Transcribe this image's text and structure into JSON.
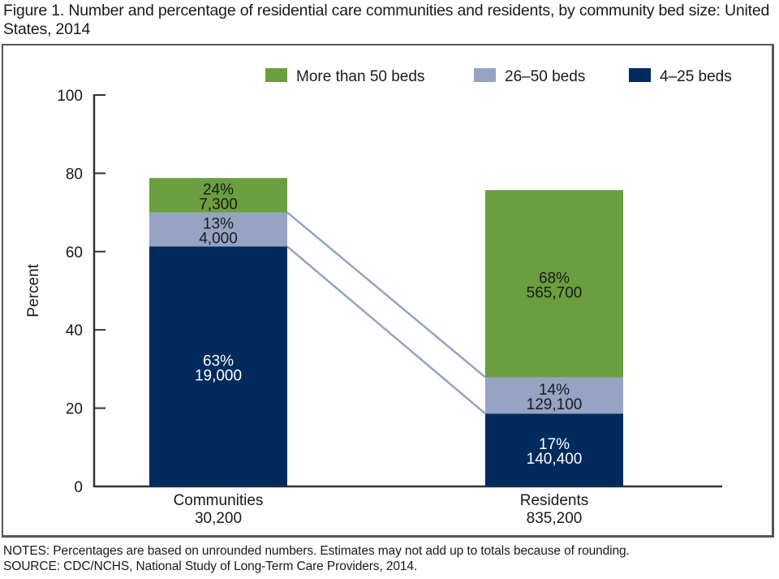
{
  "title": "Figure 1. Number and percentage of residential care communities and residents, by community bed size: United States, 2014",
  "notes": {
    "line1": "NOTES: Percentages are based on unrounded numbers. Estimates may not add up to totals because of rounding.",
    "line2": "SOURCE: CDC/NCHS, National Study of Long-Term Care Providers, 2014."
  },
  "colors": {
    "more_than_50": "#6b9e3f",
    "26_50": "#95a3c4",
    "4_25": "#002b5c",
    "connector": "#95a3c4",
    "axis": "#333333"
  },
  "chart_data": {
    "type": "bar",
    "subtype": "stacked",
    "title": "Number and percentage of residential care communities and residents, by community bed size: United States, 2014",
    "xlabel": "",
    "ylabel": "Percent",
    "ylim": [
      0,
      100
    ],
    "yticks": [
      0,
      20,
      40,
      60,
      80,
      100
    ],
    "grid": false,
    "legend_position": "top-right",
    "legend": [
      "More than 50 beds",
      "26–50 beds",
      "4–25 beds"
    ],
    "categories": [
      {
        "name": "Communities",
        "total": "30,200"
      },
      {
        "name": "Residents",
        "total": "835,200"
      }
    ],
    "series": [
      {
        "name": "4–25 beds",
        "color_key": "4_25",
        "label_color": "#ffffff",
        "values_percent": [
          63,
          17
        ],
        "counts": [
          "19,000",
          "140,400"
        ],
        "axis_extent": [
          [
            0,
            61.3
          ],
          [
            0,
            18.6
          ]
        ]
      },
      {
        "name": "26–50 beds",
        "color_key": "26_50",
        "label_color": "#1a1a1a",
        "values_percent": [
          13,
          14
        ],
        "counts": [
          "4,000",
          "129,100"
        ],
        "axis_extent": [
          [
            61.3,
            70.0
          ],
          [
            18.6,
            27.9
          ]
        ]
      },
      {
        "name": "More than 50 beds",
        "color_key": "more_than_50",
        "label_color": "#1a1a1a",
        "values_percent": [
          24,
          68
        ],
        "counts": [
          "7,300",
          "565,700"
        ],
        "axis_extent": [
          [
            70.0,
            78.8
          ],
          [
            27.9,
            75.7
          ]
        ]
      }
    ],
    "connectors": "26–50 beds segment boundaries linked between bars"
  }
}
